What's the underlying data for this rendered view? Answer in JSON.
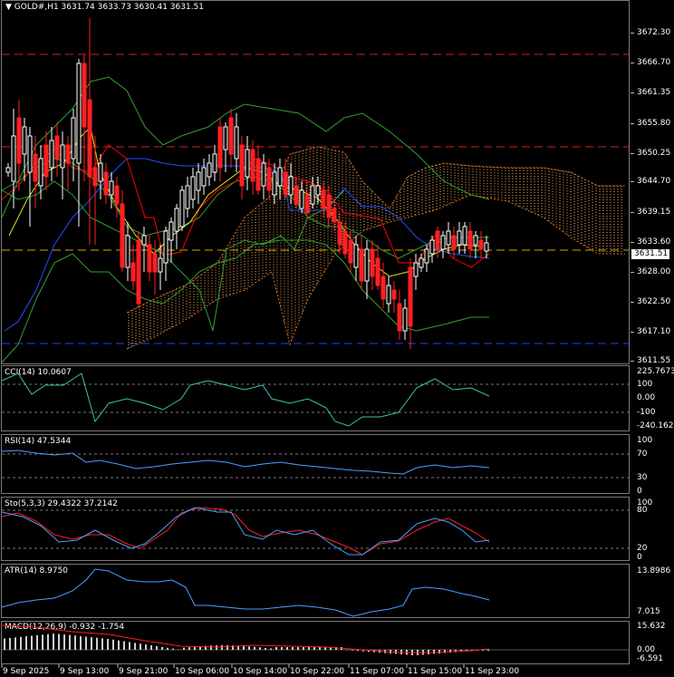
{
  "main": {
    "symbol_line": "GOLD#,H1  3631.74 3633.73 3630.41 3631.51",
    "price_box": "3631.51",
    "price_ticks": [
      "3672.30",
      "3666.70",
      "3661.35",
      "3655.80",
      "3650.25",
      "3644.70",
      "3639.15",
      "3633.60",
      "3628.00",
      "3622.50",
      "3617.10",
      "3611.55"
    ]
  },
  "cci": {
    "label": "CCI(14) 10.0607",
    "ticks": [
      "225.7673",
      "100",
      "0.00",
      "-100",
      "-240.1627"
    ]
  },
  "rsi": {
    "label": "RSI(14) 47.5344",
    "ticks": [
      "100",
      "70",
      "30",
      "0"
    ]
  },
  "sto": {
    "label": "Sto(5,3,3) 29.4322 37.2142",
    "ticks": [
      "100",
      "80",
      "20",
      "0"
    ]
  },
  "atr": {
    "label": "ATR(14) 8.9750",
    "ticks": [
      "13.8986",
      "7.015"
    ]
  },
  "macd": {
    "label": "MACD(12,26,9) -0.932 -1.754",
    "ticks": [
      "15.632",
      "0.00",
      "-6.591"
    ]
  },
  "time_labels": [
    "9 Sep 2025",
    "9 Sep 13:00",
    "9 Sep 21:00",
    "10 Sep 06:00",
    "10 Sep 14:00",
    "10 Sep 22:00",
    "11 Sep 07:00",
    "11 Sep 15:00",
    "11 Sep 23:00"
  ],
  "colors": {
    "bull": "#ffffff",
    "bear": "#ff2020",
    "cloud": "#ffb060",
    "bands": "#30a030",
    "tenkan": "#ff0000",
    "kijun": "#2050ff",
    "indicator": "#4aa0ff",
    "signal": "#ff2020",
    "hline_red": "#d02020",
    "hline_blue": "#2040ff",
    "hline_yellow": "#e0a000"
  }
}
